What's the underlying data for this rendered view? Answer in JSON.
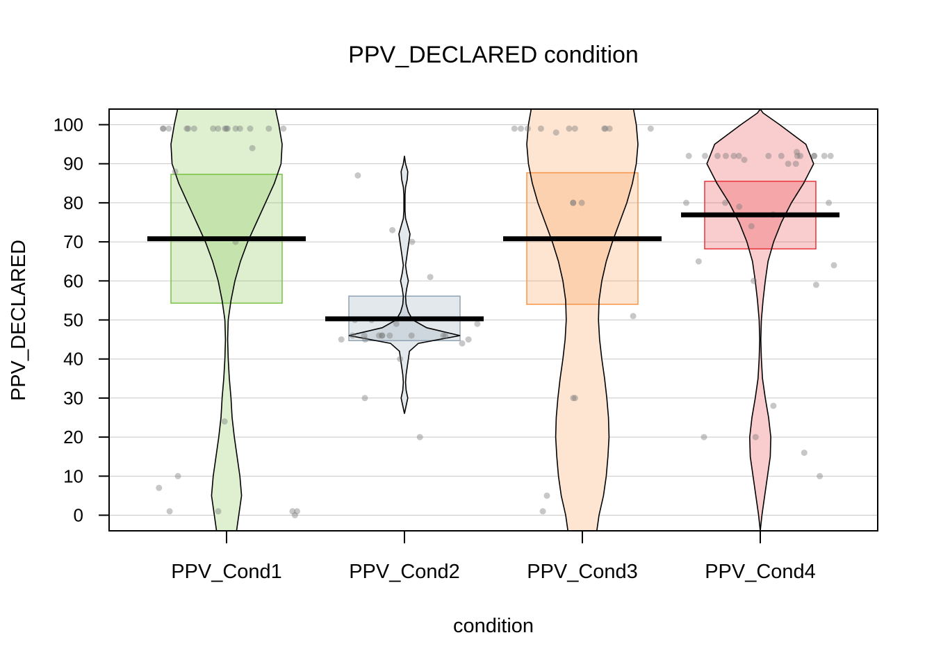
{
  "chart_data": {
    "type": "pirate",
    "title": "PPV_DECLARED condition",
    "xlabel": "condition",
    "ylabel": "PPV_DECLARED",
    "ylim": [
      -4,
      104
    ],
    "yticks": [
      0,
      10,
      20,
      30,
      40,
      50,
      60,
      70,
      80,
      90,
      100
    ],
    "grid": true,
    "categories": [
      "PPV_Cond1",
      "PPV_Cond2",
      "PPV_Cond3",
      "PPV_Cond4"
    ],
    "colors": {
      "PPV_Cond1": "#7ac143",
      "PPV_Cond2": "#8ea2b4",
      "PPV_Cond3": "#f7964a",
      "PPV_Cond4": "#e8343c"
    },
    "groups": [
      {
        "name": "PPV_Cond1",
        "mean": 70.8,
        "ci": [
          54.3,
          87.3
        ],
        "points": [
          99,
          99,
          99,
          99,
          99,
          99,
          99,
          99,
          99,
          99,
          99,
          99,
          99,
          99,
          99,
          99,
          94,
          88,
          70,
          24,
          10,
          7,
          1,
          1,
          1,
          1,
          0
        ],
        "density": [
          [
            -4,
            0.18
          ],
          [
            0,
            0.22
          ],
          [
            5,
            0.27
          ],
          [
            10,
            0.24
          ],
          [
            15,
            0.19
          ],
          [
            20,
            0.14
          ],
          [
            25,
            0.1
          ],
          [
            30,
            0.08
          ],
          [
            35,
            0.05
          ],
          [
            40,
            0.03
          ],
          [
            45,
            0.02
          ],
          [
            50,
            0.03
          ],
          [
            55,
            0.08
          ],
          [
            60,
            0.15
          ],
          [
            65,
            0.25
          ],
          [
            70,
            0.38
          ],
          [
            75,
            0.54
          ],
          [
            80,
            0.7
          ],
          [
            85,
            0.86
          ],
          [
            90,
            0.98
          ],
          [
            95,
            1.0
          ],
          [
            100,
            0.94
          ],
          [
            104,
            0.88
          ]
        ]
      },
      {
        "name": "PPV_Cond2",
        "mean": 50.3,
        "ci": [
          44.7,
          56.1
        ],
        "points": [
          87,
          73,
          70,
          61,
          50,
          50,
          49,
          49,
          46,
          46,
          46,
          46,
          46,
          46,
          46,
          45,
          45,
          45,
          44,
          40,
          30,
          20,
          46,
          46
        ],
        "density": [
          [
            26,
            0.0
          ],
          [
            28,
            0.03
          ],
          [
            30,
            0.06
          ],
          [
            32,
            0.03
          ],
          [
            34,
            0.02
          ],
          [
            36,
            0.03
          ],
          [
            38,
            0.05
          ],
          [
            40,
            0.07
          ],
          [
            42,
            0.09
          ],
          [
            44,
            0.25
          ],
          [
            46,
            1.0
          ],
          [
            48,
            0.4
          ],
          [
            50,
            0.15
          ],
          [
            52,
            0.07
          ],
          [
            54,
            0.03
          ],
          [
            56,
            0.02
          ],
          [
            58,
            0.04
          ],
          [
            60,
            0.07
          ],
          [
            62,
            0.04
          ],
          [
            64,
            0.02
          ],
          [
            66,
            0.04
          ],
          [
            68,
            0.06
          ],
          [
            70,
            0.08
          ],
          [
            72,
            0.1
          ],
          [
            74,
            0.06
          ],
          [
            76,
            0.02
          ],
          [
            78,
            0.01
          ],
          [
            80,
            0.01
          ],
          [
            82,
            0.01
          ],
          [
            84,
            0.02
          ],
          [
            86,
            0.05
          ],
          [
            88,
            0.06
          ],
          [
            90,
            0.02
          ],
          [
            92,
            0.0
          ]
        ]
      },
      {
        "name": "PPV_Cond3",
        "mean": 70.8,
        "ci": [
          54.0,
          87.7
        ],
        "points": [
          99,
          99,
          99,
          99,
          99,
          99,
          99,
          99,
          99,
          99,
          98,
          80,
          80,
          80,
          51,
          30,
          30,
          5,
          1
        ],
        "density": [
          [
            -4,
            0.26
          ],
          [
            0,
            0.3
          ],
          [
            5,
            0.38
          ],
          [
            10,
            0.43
          ],
          [
            15,
            0.46
          ],
          [
            20,
            0.48
          ],
          [
            25,
            0.47
          ],
          [
            30,
            0.44
          ],
          [
            35,
            0.4
          ],
          [
            40,
            0.35
          ],
          [
            45,
            0.31
          ],
          [
            50,
            0.29
          ],
          [
            55,
            0.3
          ],
          [
            60,
            0.35
          ],
          [
            65,
            0.43
          ],
          [
            70,
            0.54
          ],
          [
            75,
            0.67
          ],
          [
            80,
            0.8
          ],
          [
            85,
            0.9
          ],
          [
            90,
            0.97
          ],
          [
            95,
            1.0
          ],
          [
            100,
            0.97
          ],
          [
            104,
            0.92
          ]
        ]
      },
      {
        "name": "PPV_Cond4",
        "mean": 76.9,
        "ci": [
          68.2,
          85.5
        ],
        "points": [
          93,
          92,
          92,
          92,
          92,
          92,
          92,
          92,
          92,
          92,
          92,
          92,
          92,
          92,
          92,
          91,
          90,
          90,
          80,
          80,
          80,
          79,
          77,
          74,
          65,
          64,
          60,
          59,
          28,
          20,
          20,
          16,
          10
        ],
        "density": [
          [
            -4,
            0.0
          ],
          [
            0,
            0.03
          ],
          [
            5,
            0.08
          ],
          [
            10,
            0.13
          ],
          [
            15,
            0.18
          ],
          [
            20,
            0.19
          ],
          [
            25,
            0.15
          ],
          [
            30,
            0.09
          ],
          [
            35,
            0.04
          ],
          [
            40,
            0.02
          ],
          [
            45,
            0.01
          ],
          [
            50,
            0.02
          ],
          [
            55,
            0.05
          ],
          [
            60,
            0.09
          ],
          [
            65,
            0.14
          ],
          [
            70,
            0.24
          ],
          [
            75,
            0.38
          ],
          [
            80,
            0.56
          ],
          [
            85,
            0.78
          ],
          [
            90,
            0.96
          ],
          [
            95,
            0.82
          ],
          [
            100,
            0.35
          ],
          [
            103,
            0.05
          ],
          [
            104,
            0.0
          ]
        ]
      }
    ]
  }
}
